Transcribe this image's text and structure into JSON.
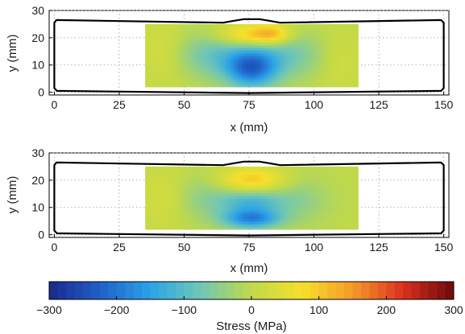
{
  "chart_data": [
    {
      "type": "heatmap",
      "xlabel": "x (mm)",
      "ylabel": "y (mm)",
      "xlim": [
        -2,
        152
      ],
      "ylim": [
        -1,
        30
      ],
      "xticks": [
        0,
        25,
        50,
        75,
        100,
        125,
        150
      ],
      "yticks": [
        0,
        10,
        20,
        30
      ],
      "grid": true,
      "measured_region": {
        "x": [
          35,
          117
        ],
        "y": [
          2,
          25
        ]
      },
      "outline": [
        [
          0,
          1.5
        ],
        [
          0,
          25.5
        ],
        [
          0.8,
          26.5
        ],
        [
          65,
          25.5
        ],
        [
          69,
          26.2
        ],
        [
          73,
          26.8
        ],
        [
          79,
          26.8
        ],
        [
          83,
          26.2
        ],
        [
          87,
          25.5
        ],
        [
          149,
          26.5
        ],
        [
          150,
          25.5
        ],
        [
          150,
          1.5
        ],
        [
          149,
          0.5
        ],
        [
          75,
          -0.3
        ],
        [
          1,
          0.5
        ]
      ],
      "hot_spots": [
        {
          "x": 75,
          "y": 21,
          "stress": 110,
          "sx": 9,
          "sy": 3
        },
        {
          "x": 84,
          "y": 21.5,
          "stress": 90,
          "sx": 5,
          "sy": 2.5
        },
        {
          "x": 76,
          "y": 9,
          "stress": -200,
          "sx": 7,
          "sy": 5
        },
        {
          "x": 62,
          "y": 14,
          "stress": -80,
          "sx": 10,
          "sy": 6
        },
        {
          "x": 90,
          "y": 14,
          "stress": -70,
          "sx": 10,
          "sy": 6
        },
        {
          "x": 42,
          "y": 15,
          "stress": 30,
          "sx": 6,
          "sy": 8
        },
        {
          "x": 110,
          "y": 12,
          "stress": 25,
          "sx": 6,
          "sy": 8
        }
      ]
    },
    {
      "type": "heatmap",
      "xlabel": "x (mm)",
      "ylabel": "y (mm)",
      "xlim": [
        -2,
        152
      ],
      "ylim": [
        -1,
        30
      ],
      "xticks": [
        0,
        25,
        50,
        75,
        100,
        125,
        150
      ],
      "yticks": [
        0,
        10,
        20,
        30
      ],
      "grid": true,
      "measured_region": {
        "x": [
          35,
          117
        ],
        "y": [
          2,
          25
        ]
      },
      "outline": [
        [
          0,
          1.5
        ],
        [
          0,
          25.5
        ],
        [
          0.8,
          26.5
        ],
        [
          65,
          25.5
        ],
        [
          69,
          26.2
        ],
        [
          73,
          26.8
        ],
        [
          79,
          26.8
        ],
        [
          83,
          26.2
        ],
        [
          87,
          25.5
        ],
        [
          149,
          26.5
        ],
        [
          150,
          25.5
        ],
        [
          150,
          1.5
        ],
        [
          149,
          0.5
        ],
        [
          75,
          -0.3
        ],
        [
          1,
          0.5
        ]
      ],
      "hot_spots": [
        {
          "x": 76,
          "y": 20.5,
          "stress": 100,
          "sx": 9,
          "sy": 3
        },
        {
          "x": 76,
          "y": 6,
          "stress": -180,
          "sx": 8,
          "sy": 2.5
        },
        {
          "x": 76,
          "y": 12,
          "stress": -110,
          "sx": 9,
          "sy": 3
        },
        {
          "x": 58,
          "y": 14,
          "stress": -40,
          "sx": 8,
          "sy": 6
        },
        {
          "x": 95,
          "y": 13,
          "stress": -40,
          "sx": 8,
          "sy": 6
        },
        {
          "x": 42,
          "y": 14,
          "stress": 30,
          "sx": 6,
          "sy": 8
        }
      ]
    }
  ],
  "colorbar": {
    "label": "Stress (MPa)",
    "min": -300,
    "max": 300,
    "ticks": [
      -300,
      -200,
      -100,
      0,
      100,
      200,
      300
    ],
    "colors": [
      "#1a2a8c",
      "#1f5fc8",
      "#2ba3e8",
      "#6fc7b5",
      "#c0d94a",
      "#f5e02a",
      "#f59a2a",
      "#d9301f",
      "#6b0a0a"
    ]
  }
}
